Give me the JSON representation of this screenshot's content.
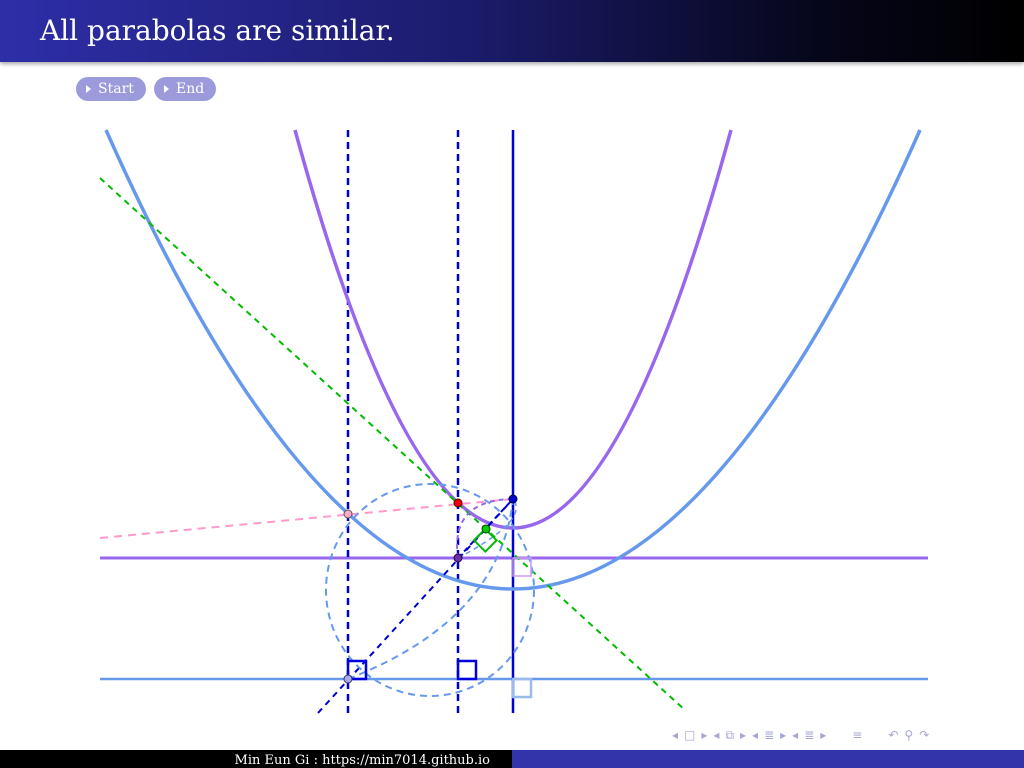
{
  "slide": {
    "title": "All parabolas are similar."
  },
  "buttons": {
    "start_label": "Start",
    "end_label": "End"
  },
  "footer": {
    "author_text": "Min Eun Gi : https://min7014.github.io"
  },
  "nav_icons": [
    "triangle-left-icon",
    "frame-icon",
    "triangle-right-icon",
    "triangle-left-icon",
    "subsection-icon",
    "triangle-right-icon",
    "triangle-left-icon",
    "section-icon",
    "triangle-right-icon",
    "triangle-left-icon",
    "toc-icon",
    "triangle-right-icon",
    "align-icon",
    "back-icon",
    "search-icon",
    "forward-icon"
  ],
  "colors": {
    "title_bar_start": "#2e2ea8",
    "title_bar_end": "#000000",
    "button_bg": "#9b9bdc",
    "parabola_large": "#6699ee",
    "parabola_small": "#9966ee",
    "axis_blue": "#0000dd",
    "tangent_green": "#00bb00",
    "pink_line": "#ff99cc",
    "point_red": "#ee0000",
    "footer_right": "#3333aa"
  }
}
